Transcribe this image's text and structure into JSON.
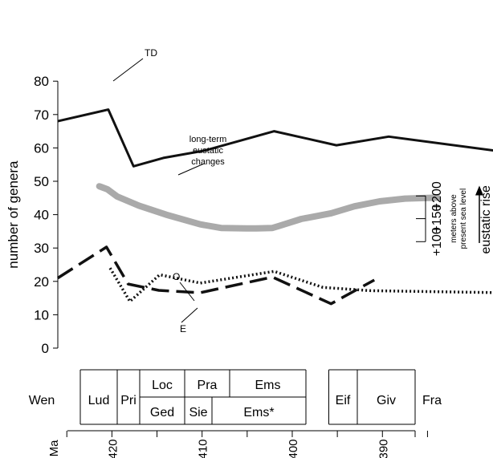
{
  "chart_data": {
    "type": "line",
    "x_unit_label": "Ma",
    "ylabel": "number of genera",
    "ylim": [
      0,
      80
    ],
    "y_ticks": [
      0,
      10,
      20,
      30,
      40,
      50,
      60,
      70,
      80
    ],
    "x_range_ma": [
      426,
      377
    ],
    "x_ticks_ma": [
      425,
      420,
      415,
      410,
      405,
      400,
      395,
      390,
      385,
      380
    ],
    "x_tick_labels": [
      {
        "ma": 420,
        "label": "420"
      },
      {
        "ma": 410,
        "label": "410"
      },
      {
        "ma": 400,
        "label": "400"
      },
      {
        "ma": 390,
        "label": "390"
      }
    ],
    "series": [
      {
        "name": "TD",
        "color": "#111111",
        "style": "solid",
        "points": [
          [
            426,
            68
          ],
          [
            420.4,
            71.5
          ],
          [
            417.6,
            54.5
          ],
          [
            414.3,
            57
          ],
          [
            409.7,
            59.2
          ],
          [
            402,
            65
          ],
          [
            395.1,
            60.8
          ],
          [
            389.3,
            63.4
          ],
          [
            377,
            59
          ]
        ]
      },
      {
        "name": "O",
        "color": "#111111",
        "style": "dotted",
        "points": [
          [
            420.2,
            24
          ],
          [
            418,
            14
          ],
          [
            414.7,
            22
          ],
          [
            410.2,
            19.5
          ],
          [
            402,
            23
          ],
          [
            396.6,
            18.2
          ],
          [
            391.3,
            17.2
          ],
          [
            377,
            16.6
          ]
        ]
      },
      {
        "name": "E",
        "color": "#111111",
        "style": "dashed",
        "points": [
          [
            426,
            21
          ],
          [
            420.6,
            30.3
          ],
          [
            418.2,
            19.2
          ],
          [
            414.8,
            17.3
          ],
          [
            410.2,
            16.6
          ],
          [
            402.2,
            21.3
          ],
          [
            395.7,
            13.3
          ],
          [
            390.9,
            20.4
          ]
        ]
      },
      {
        "name": "long-term eustatic changes",
        "color": "#aaaaaa",
        "style": "solid-thick",
        "points": [
          [
            421.4,
            48.5
          ],
          [
            420.5,
            47.6
          ],
          [
            419.4,
            45.4
          ],
          [
            417,
            42.7
          ],
          [
            414,
            40
          ],
          [
            410.2,
            37.1
          ],
          [
            407.9,
            36
          ],
          [
            405.1,
            35.9
          ],
          [
            404,
            35.9
          ],
          [
            402.2,
            36
          ],
          [
            401.6,
            36.5
          ],
          [
            399,
            38.7
          ],
          [
            395.7,
            40.4
          ],
          [
            393.1,
            42.5
          ],
          [
            390.3,
            44
          ],
          [
            387.5,
            44.8
          ],
          [
            383.9,
            45.1
          ]
        ]
      }
    ],
    "series_labels": {
      "td": "TD",
      "o": "O",
      "e": "E",
      "eustatic": [
        "long-term",
        "eustatic",
        "changes"
      ]
    },
    "secondary_axis": {
      "tick_labels": [
        "+100",
        "+150",
        "+200"
      ],
      "title_lines": [
        "meters above",
        "present sea level"
      ],
      "arrow_label": "eustatic rise"
    },
    "stages": {
      "Wen": "Wen",
      "Lud": "Lud",
      "Pri": "Pri",
      "Loc": "Loc",
      "Ged": "Ged",
      "Pra": "Pra",
      "Sie": "Sie",
      "Ems": "Ems",
      "EmsStar": "Ems*",
      "Eif": "Eif",
      "Giv": "Giv",
      "Fra": "Fra"
    }
  }
}
